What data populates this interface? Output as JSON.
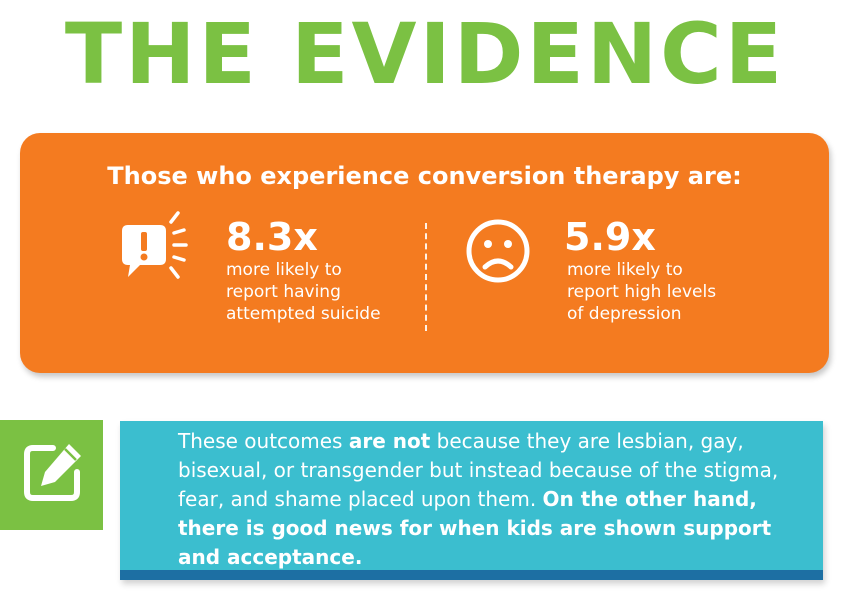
{
  "title": "THE EVIDENCE",
  "card": {
    "heading": "Those who experience conversion therapy are:",
    "stats": [
      {
        "number": "8.3x",
        "description_lines": [
          "more likely to",
          "report having",
          "attempted suicide"
        ],
        "icon": "alert-speech-bubble-icon"
      },
      {
        "number": "5.9x",
        "description_lines": [
          "more likely to",
          "report high levels",
          "of depression"
        ],
        "icon": "sad-face-icon"
      }
    ]
  },
  "note": {
    "icon": "edit-note-icon",
    "segments": [
      {
        "text": "These outcomes ",
        "bold": false
      },
      {
        "text": "are not",
        "bold": true
      },
      {
        "text": " because they are lesbian, gay, bisexual, or transgender but instead because of the stigma, fear, and shame placed upon them. ",
        "bold": false
      },
      {
        "text": "On the other hand, there is good news for when kids are shown support and acceptance.",
        "bold": true
      }
    ]
  },
  "colors": {
    "title_green": "#7bc143",
    "card_orange": "#f47b20",
    "note_teal": "#3bbecf",
    "note_bottom_bar": "#1d6fa3"
  }
}
